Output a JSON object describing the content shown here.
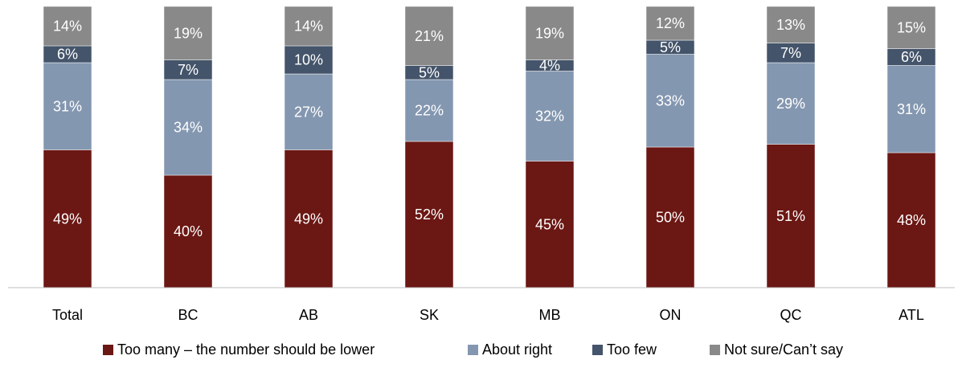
{
  "chart_data": {
    "type": "bar",
    "stacked": true,
    "orientation": "vertical",
    "categories": [
      "Total",
      "BC",
      "AB",
      "SK",
      "MB",
      "ON",
      "QC",
      "ATL"
    ],
    "series": [
      {
        "name": "Too many – the number should be lower",
        "color": "#6b1713",
        "values": [
          49,
          40,
          49,
          52,
          45,
          50,
          51,
          48
        ],
        "labels": [
          "49%",
          "40%",
          "49%",
          "52%",
          "45%",
          "50%",
          "51%",
          "48%"
        ]
      },
      {
        "name": "About right",
        "color": "#8497b0",
        "values": [
          31,
          34,
          27,
          22,
          32,
          33,
          29,
          31
        ],
        "labels": [
          "31%",
          "34%",
          "27%",
          "22%",
          "32%",
          "33%",
          "29%",
          "31%"
        ]
      },
      {
        "name": "Too few",
        "color": "#44546a",
        "values": [
          6,
          7,
          10,
          5,
          4,
          5,
          7,
          6
        ],
        "labels": [
          "6%",
          "7%",
          "10%",
          "5%",
          "4%",
          "5%",
          "7%",
          "6%"
        ]
      },
      {
        "name": "Not sure/Can’t say",
        "color": "#898989",
        "values": [
          14,
          19,
          14,
          21,
          19,
          12,
          13,
          15
        ],
        "labels": [
          "14%",
          "19%",
          "14%",
          "21%",
          "19%",
          "12%",
          "13%",
          "15%"
        ]
      }
    ],
    "ylim": [
      0,
      100
    ],
    "grid": false,
    "legend_position": "bottom",
    "xlabel": "",
    "ylabel": "",
    "title": ""
  }
}
